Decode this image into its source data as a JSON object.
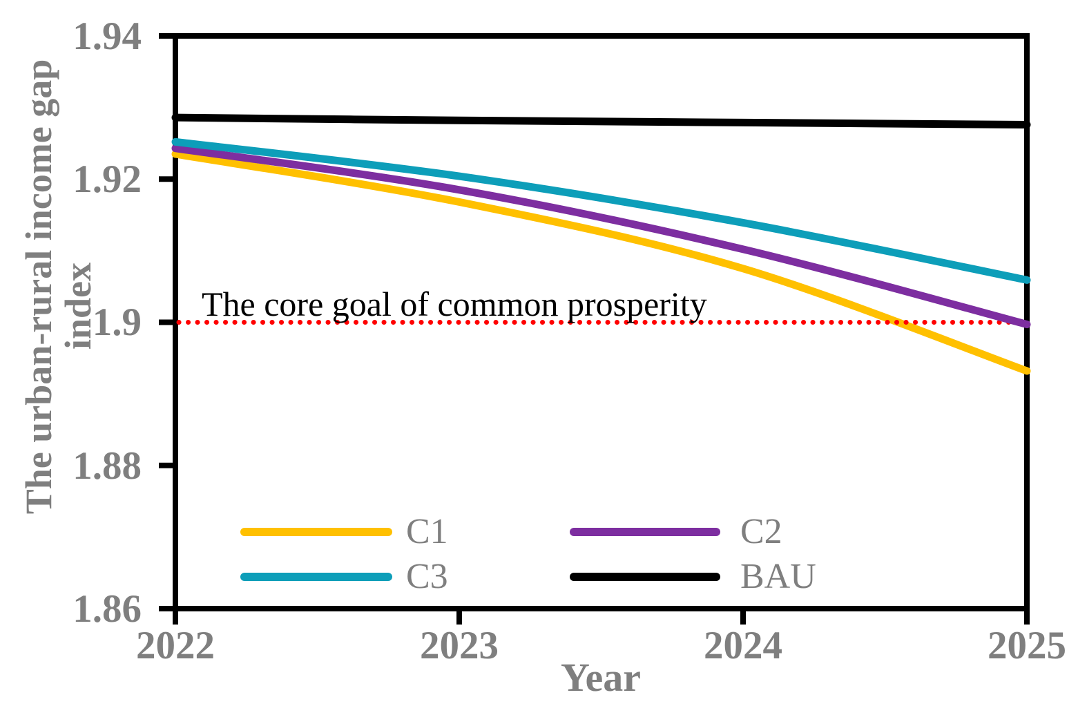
{
  "chart_data": {
    "type": "line",
    "title": "",
    "xlabel": "Year",
    "ylabel": "The urban-rural income gap index",
    "ylabel_lines": [
      "The urban-rural income gap",
      "index"
    ],
    "x": [
      2022,
      2023,
      2024,
      2025
    ],
    "x_tick_labels": [
      "2022",
      "2023",
      "2024",
      "2025"
    ],
    "xlim": [
      2022,
      2025
    ],
    "y_ticks": [
      1.86,
      1.88,
      1.9,
      1.92,
      1.94
    ],
    "y_tick_labels": [
      "1.86",
      "1.88",
      "1.9",
      "1.92",
      "1.94"
    ],
    "ylim": [
      1.86,
      1.94
    ],
    "grid": false,
    "legend_position": "inside-bottom-left",
    "series": [
      {
        "name": "C1",
        "color": "#FFC000",
        "values": [
          1.9235,
          1.9168,
          1.9075,
          1.8932
        ]
      },
      {
        "name": "C2",
        "color": "#7D2EA0",
        "values": [
          1.9243,
          1.9185,
          1.9102,
          1.8997
        ]
      },
      {
        "name": "C3",
        "color": "#0D9EB9",
        "values": [
          1.9252,
          1.9204,
          1.9139,
          1.9059
        ]
      },
      {
        "name": "BAU",
        "color": "#000000",
        "values": [
          1.9286,
          1.9282,
          1.9279,
          1.9276
        ]
      }
    ],
    "reference_line": {
      "value": 1.9,
      "color": "#FF0000",
      "style": "dotted",
      "label": "The core goal of common prosperity"
    },
    "axis_color": "#000000",
    "tick_label_color": "#7F7F7F"
  }
}
